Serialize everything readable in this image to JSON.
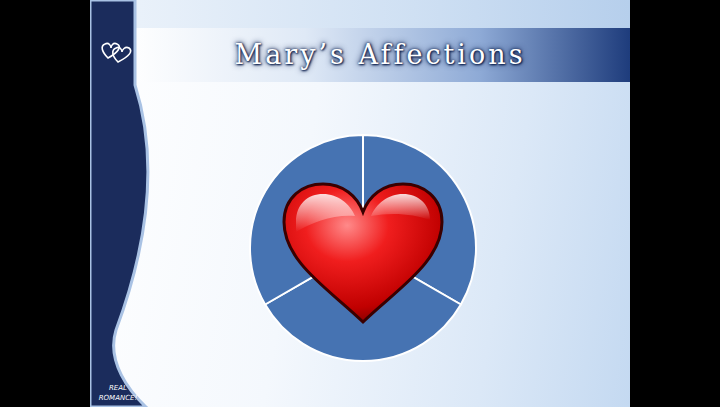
{
  "chart_data": {
    "type": "pie",
    "title": "Mary’s Affections",
    "values": [
      33.3,
      33.3,
      33.3
    ],
    "color": "#4673b2"
  },
  "slide": {
    "footer": "REAL ROMANCE!"
  }
}
